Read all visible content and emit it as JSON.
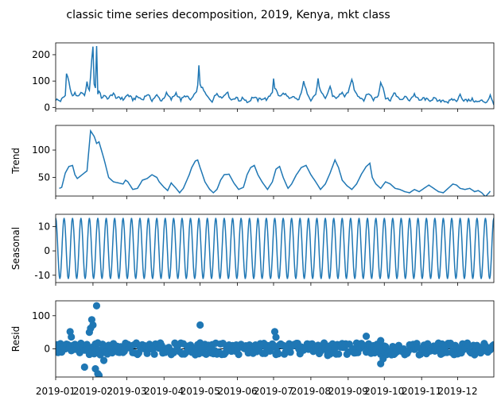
{
  "chart_data": {
    "type": "line",
    "title": "classic time series decomposition, 2019, Kenya, mkt class",
    "x_range": [
      "2019-01-01",
      "2019-12-31"
    ],
    "x_tick_labels": [
      "2019-01",
      "2019-02",
      "2019-03",
      "2019-04",
      "2019-05",
      "2019-06",
      "2019-07",
      "2019-08",
      "2019-09",
      "2019-10",
      "2019-11",
      "2019-12"
    ],
    "line_color": "#1f77b4",
    "panels": [
      {
        "key": "observed",
        "ylabel": "",
        "ylim": [
          -5,
          245
        ],
        "yticks": [
          0,
          100,
          200
        ],
        "anchors": [
          [
            0,
            30
          ],
          [
            4,
            25
          ],
          [
            8,
            45
          ],
          [
            9,
            128
          ],
          [
            10,
            122
          ],
          [
            12,
            70
          ],
          [
            14,
            40
          ],
          [
            16,
            58
          ],
          [
            18,
            38
          ],
          [
            20,
            45
          ],
          [
            22,
            60
          ],
          [
            24,
            40
          ],
          [
            26,
            95
          ],
          [
            28,
            60
          ],
          [
            30,
            185
          ],
          [
            31,
            230
          ],
          [
            32,
            90
          ],
          [
            33,
            75
          ],
          [
            34,
            232
          ],
          [
            35,
            55
          ],
          [
            36,
            60
          ],
          [
            38,
            38
          ],
          [
            40,
            42
          ],
          [
            44,
            35
          ],
          [
            48,
            55
          ],
          [
            50,
            30
          ],
          [
            52,
            42
          ],
          [
            56,
            30
          ],
          [
            60,
            48
          ],
          [
            64,
            30
          ],
          [
            68,
            40
          ],
          [
            72,
            30
          ],
          [
            76,
            50
          ],
          [
            80,
            28
          ],
          [
            84,
            45
          ],
          [
            88,
            25
          ],
          [
            92,
            52
          ],
          [
            96,
            30
          ],
          [
            100,
            55
          ],
          [
            104,
            28
          ],
          [
            108,
            45
          ],
          [
            112,
            28
          ],
          [
            116,
            50
          ],
          [
            118,
            80
          ],
          [
            119,
            155
          ],
          [
            120,
            90
          ],
          [
            122,
            70
          ],
          [
            126,
            40
          ],
          [
            130,
            25
          ],
          [
            134,
            55
          ],
          [
            138,
            35
          ],
          [
            142,
            60
          ],
          [
            146,
            28
          ],
          [
            150,
            40
          ],
          [
            152,
            25
          ],
          [
            156,
            35
          ],
          [
            160,
            20
          ],
          [
            164,
            40
          ],
          [
            168,
            28
          ],
          [
            172,
            35
          ],
          [
            176,
            30
          ],
          [
            180,
            60
          ],
          [
            181,
            112
          ],
          [
            182,
            75
          ],
          [
            186,
            40
          ],
          [
            190,
            55
          ],
          [
            194,
            30
          ],
          [
            198,
            40
          ],
          [
            202,
            25
          ],
          [
            206,
            95
          ],
          [
            208,
            65
          ],
          [
            212,
            30
          ],
          [
            216,
            50
          ],
          [
            218,
            105
          ],
          [
            220,
            60
          ],
          [
            224,
            30
          ],
          [
            228,
            80
          ],
          [
            230,
            45
          ],
          [
            234,
            35
          ],
          [
            238,
            60
          ],
          [
            240,
            35
          ],
          [
            244,
            70
          ],
          [
            246,
            110
          ],
          [
            248,
            70
          ],
          [
            252,
            40
          ],
          [
            256,
            30
          ],
          [
            260,
            55
          ],
          [
            264,
            30
          ],
          [
            268,
            45
          ],
          [
            270,
            95
          ],
          [
            272,
            80
          ],
          [
            274,
            35
          ],
          [
            278,
            30
          ],
          [
            282,
            55
          ],
          [
            286,
            25
          ],
          [
            290,
            40
          ],
          [
            294,
            28
          ],
          [
            298,
            50
          ],
          [
            302,
            25
          ],
          [
            306,
            35
          ],
          [
            310,
            25
          ],
          [
            314,
            35
          ],
          [
            318,
            22
          ],
          [
            322,
            28
          ],
          [
            326,
            20
          ],
          [
            330,
            30
          ],
          [
            334,
            25
          ],
          [
            336,
            55
          ],
          [
            338,
            30
          ],
          [
            342,
            25
          ],
          [
            346,
            30
          ],
          [
            350,
            20
          ],
          [
            354,
            25
          ],
          [
            358,
            20
          ],
          [
            361,
            45
          ],
          [
            362,
            30
          ],
          [
            364,
            15
          ]
        ]
      },
      {
        "key": "trend",
        "ylabel": "Trend",
        "ylim": [
          16,
          145
        ],
        "yticks": [
          50,
          100
        ],
        "anchors": [
          [
            3,
            30
          ],
          [
            5,
            32
          ],
          [
            8,
            58
          ],
          [
            11,
            70
          ],
          [
            14,
            72
          ],
          [
            16,
            55
          ],
          [
            18,
            48
          ],
          [
            22,
            55
          ],
          [
            26,
            62
          ],
          [
            29,
            135
          ],
          [
            32,
            125
          ],
          [
            34,
            112
          ],
          [
            36,
            115
          ],
          [
            40,
            85
          ],
          [
            44,
            50
          ],
          [
            48,
            42
          ],
          [
            52,
            40
          ],
          [
            56,
            38
          ],
          [
            58,
            45
          ],
          [
            60,
            42
          ],
          [
            64,
            28
          ],
          [
            68,
            30
          ],
          [
            72,
            45
          ],
          [
            76,
            48
          ],
          [
            80,
            55
          ],
          [
            84,
            50
          ],
          [
            86,
            42
          ],
          [
            90,
            32
          ],
          [
            93,
            26
          ],
          [
            96,
            40
          ],
          [
            100,
            30
          ],
          [
            103,
            22
          ],
          [
            106,
            30
          ],
          [
            108,
            40
          ],
          [
            111,
            55
          ],
          [
            113,
            68
          ],
          [
            116,
            80
          ],
          [
            118,
            82
          ],
          [
            120,
            68
          ],
          [
            124,
            42
          ],
          [
            128,
            28
          ],
          [
            131,
            22
          ],
          [
            134,
            28
          ],
          [
            137,
            45
          ],
          [
            140,
            55
          ],
          [
            144,
            56
          ],
          [
            148,
            40
          ],
          [
            152,
            28
          ],
          [
            156,
            32
          ],
          [
            159,
            55
          ],
          [
            162,
            68
          ],
          [
            165,
            72
          ],
          [
            168,
            55
          ],
          [
            172,
            40
          ],
          [
            176,
            28
          ],
          [
            180,
            42
          ],
          [
            183,
            65
          ],
          [
            186,
            70
          ],
          [
            189,
            50
          ],
          [
            193,
            30
          ],
          [
            196,
            38
          ],
          [
            200,
            55
          ],
          [
            204,
            68
          ],
          [
            208,
            72
          ],
          [
            212,
            55
          ],
          [
            216,
            42
          ],
          [
            220,
            28
          ],
          [
            224,
            38
          ],
          [
            228,
            58
          ],
          [
            232,
            82
          ],
          [
            235,
            68
          ],
          [
            238,
            45
          ],
          [
            242,
            35
          ],
          [
            246,
            28
          ],
          [
            250,
            38
          ],
          [
            254,
            56
          ],
          [
            258,
            70
          ],
          [
            261,
            76
          ],
          [
            263,
            50
          ],
          [
            266,
            38
          ],
          [
            270,
            30
          ],
          [
            274,
            42
          ],
          [
            278,
            38
          ],
          [
            282,
            30
          ],
          [
            286,
            28
          ],
          [
            290,
            24
          ],
          [
            294,
            22
          ],
          [
            298,
            28
          ],
          [
            302,
            24
          ],
          [
            306,
            30
          ],
          [
            310,
            36
          ],
          [
            314,
            30
          ],
          [
            318,
            24
          ],
          [
            322,
            22
          ],
          [
            326,
            30
          ],
          [
            330,
            38
          ],
          [
            333,
            36
          ],
          [
            336,
            30
          ],
          [
            340,
            28
          ],
          [
            344,
            30
          ],
          [
            348,
            24
          ],
          [
            351,
            26
          ],
          [
            354,
            22
          ],
          [
            357,
            15
          ],
          [
            360,
            22
          ],
          [
            361,
            25
          ]
        ]
      },
      {
        "key": "seasonal",
        "ylabel": "Seasonal",
        "ylim": [
          -13,
          15
        ],
        "yticks": [
          -10,
          0,
          10
        ],
        "period_days": 7,
        "max": 13.5,
        "min": -11.5
      },
      {
        "key": "resid",
        "ylabel": "Resid",
        "ylim": [
          -85,
          145
        ],
        "yticks": [
          0,
          100
        ],
        "highlights": [
          [
            12,
            52
          ],
          [
            13,
            36
          ],
          [
            28,
            50
          ],
          [
            29,
            62
          ],
          [
            30,
            88
          ],
          [
            31,
            72
          ],
          [
            33,
            -60
          ],
          [
            35,
            -75
          ],
          [
            34,
            130
          ],
          [
            36,
            -80
          ],
          [
            24,
            -55
          ],
          [
            40,
            -35
          ],
          [
            120,
            72
          ],
          [
            182,
            52
          ],
          [
            183,
            35
          ],
          [
            226,
            -20
          ],
          [
            270,
            -45
          ],
          [
            272,
            -30
          ],
          [
            270,
            25
          ],
          [
            258,
            38
          ]
        ]
      }
    ]
  }
}
